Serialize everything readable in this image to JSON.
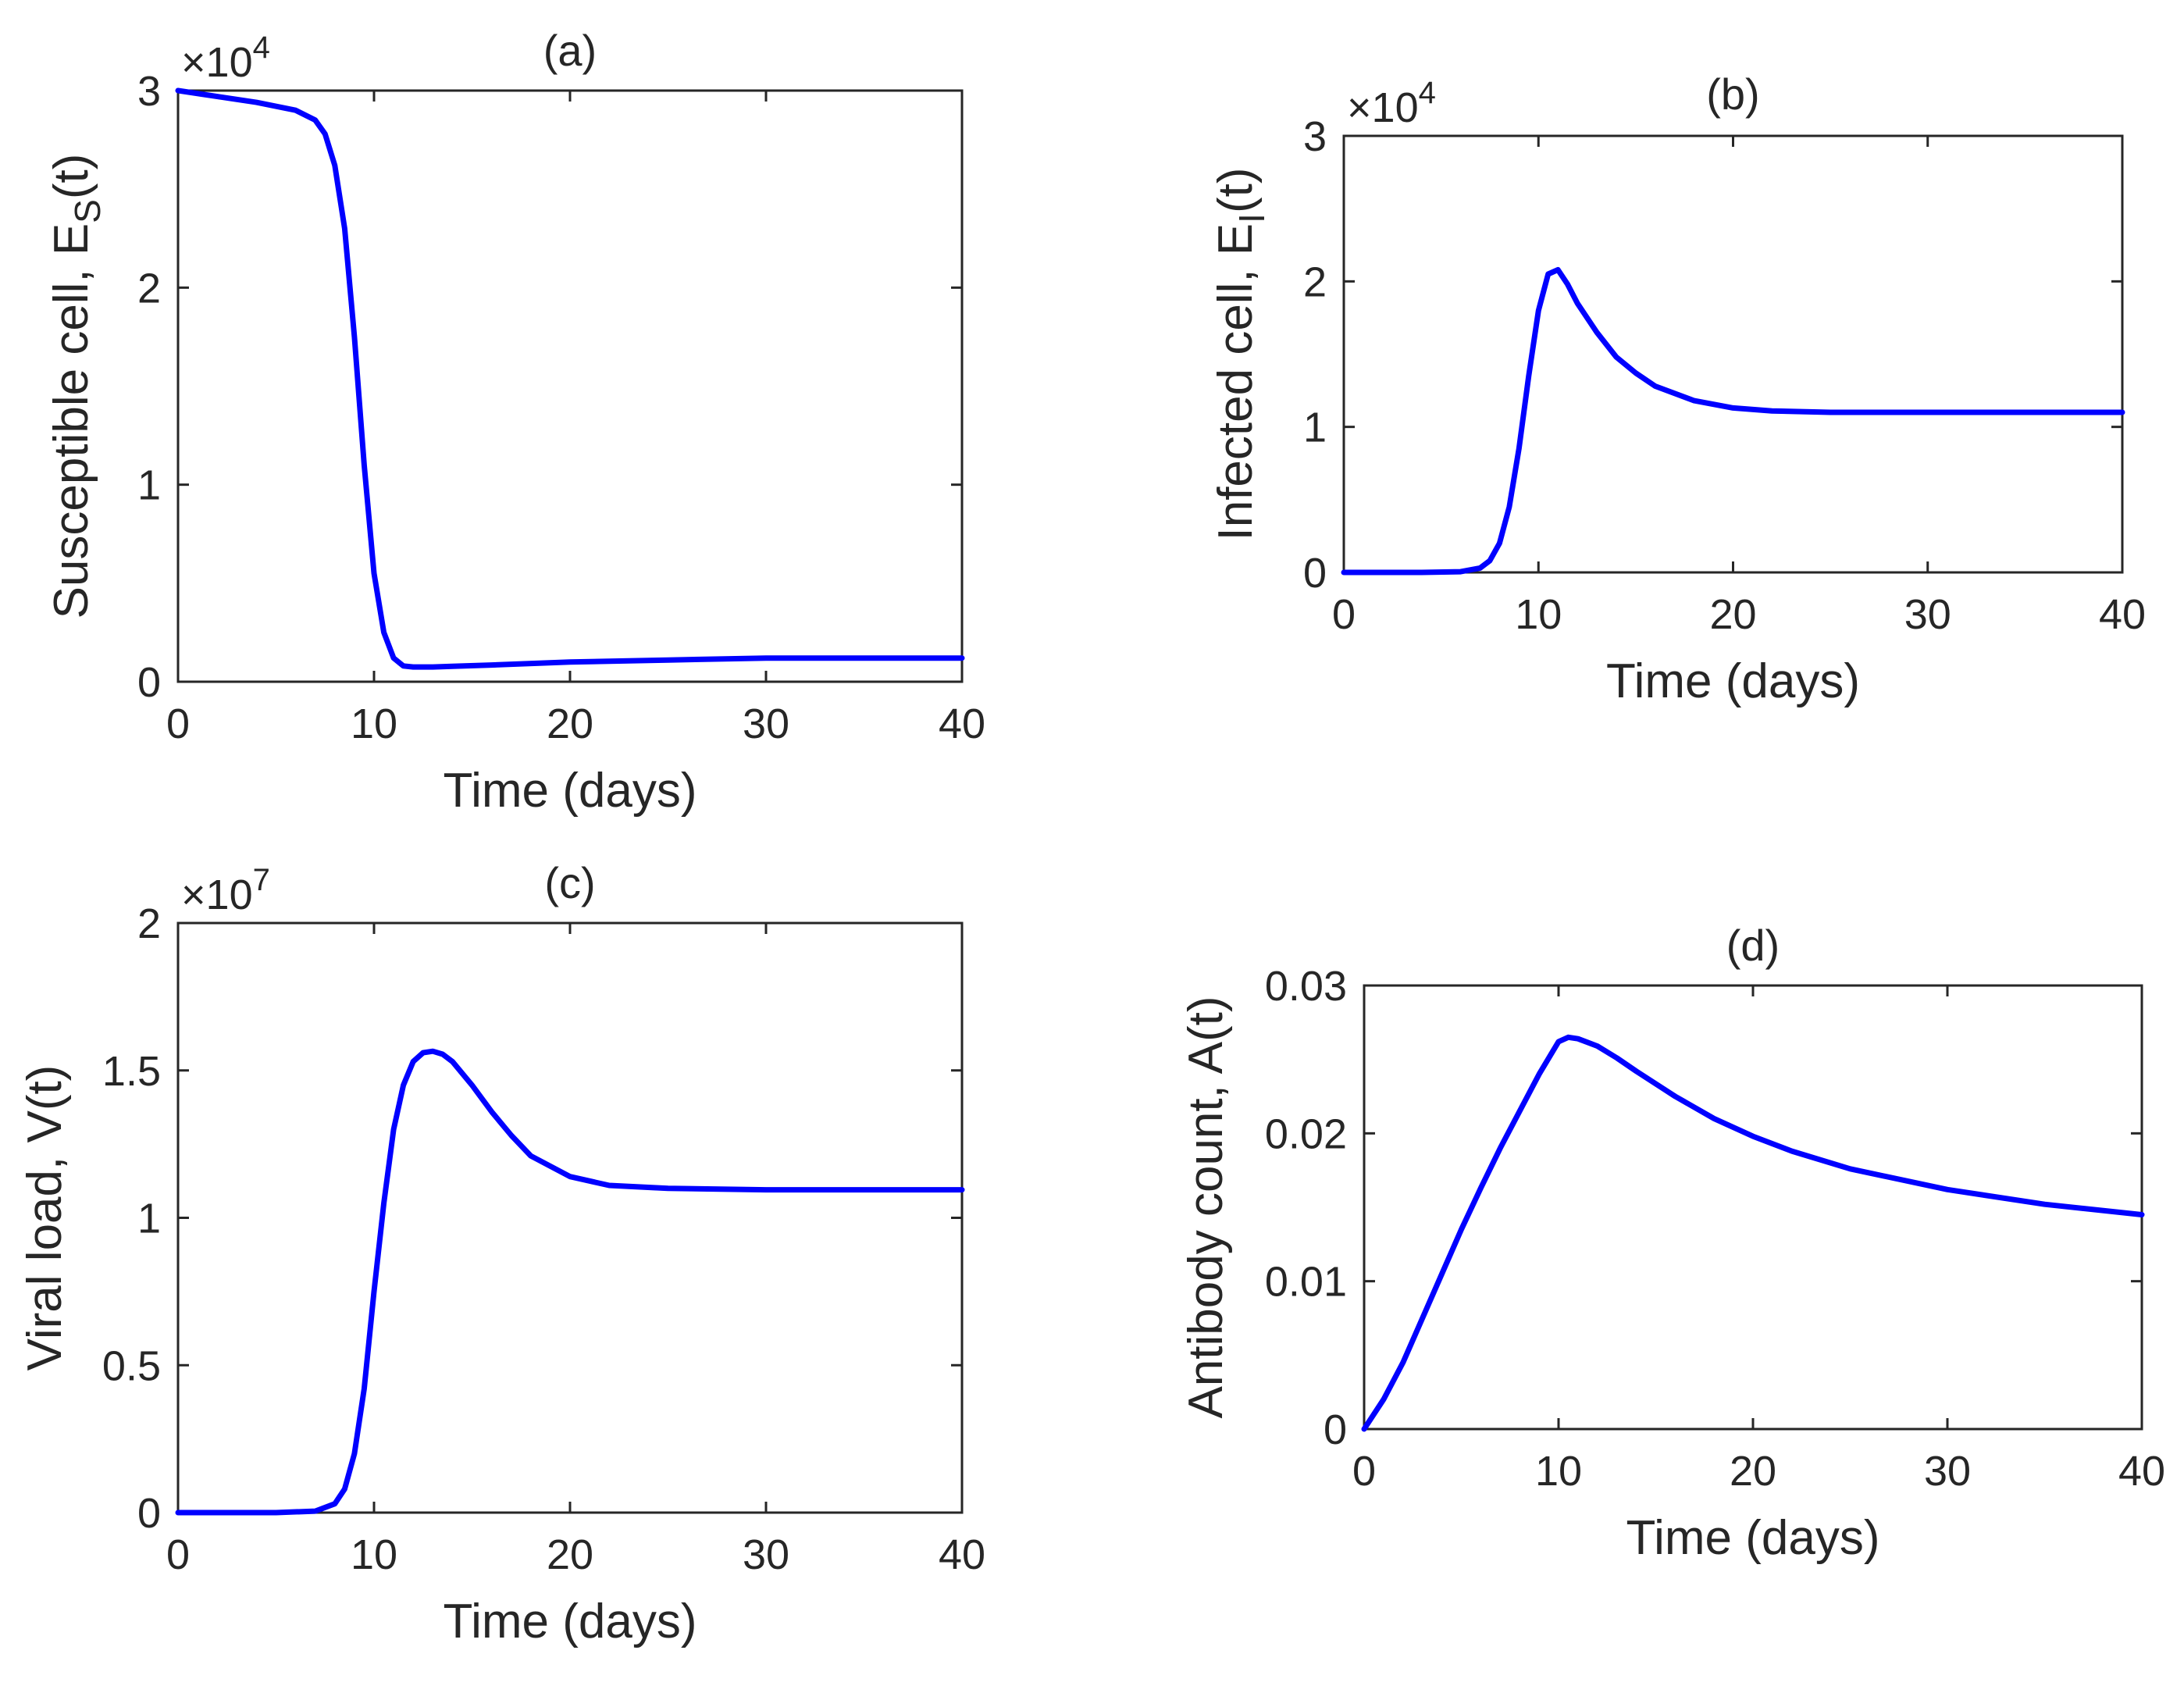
{
  "chart_data": [
    {
      "panel": "a",
      "type": "line",
      "title": "(a)",
      "xlabel": "Time (days)",
      "ylabel": "Susceptible cell, E",
      "ylabel_sub": "S",
      "ylabel_tail": "(t)",
      "xlim": [
        0,
        40
      ],
      "ylim": [
        0,
        3
      ],
      "xticks": [
        0,
        10,
        20,
        30,
        40
      ],
      "yticks": [
        0,
        1,
        2,
        3
      ],
      "xtick_labels": [
        "0",
        "10",
        "20",
        "30",
        "40"
      ],
      "ytick_labels": [
        "0",
        "1",
        "2",
        "3"
      ],
      "y_exponent": {
        "prefix": "×10",
        "power": "4"
      },
      "series": [
        {
          "name": "E_S(t)",
          "color": "#0000ff",
          "x": [
            0,
            2,
            4,
            6,
            7,
            7.5,
            8,
            8.5,
            9,
            9.5,
            10,
            10.5,
            11,
            11.5,
            12,
            13,
            14,
            16,
            20,
            25,
            30,
            35,
            40
          ],
          "y": [
            3.0,
            2.97,
            2.94,
            2.9,
            2.85,
            2.78,
            2.62,
            2.3,
            1.75,
            1.1,
            0.55,
            0.25,
            0.12,
            0.08,
            0.075,
            0.075,
            0.078,
            0.085,
            0.1,
            0.11,
            0.12,
            0.12,
            0.12
          ]
        }
      ]
    },
    {
      "panel": "b",
      "type": "line",
      "title": "(b)",
      "xlabel": "Time (days)",
      "ylabel": "Infected cell, E",
      "ylabel_sub": "I",
      "ylabel_tail": "(t)",
      "xlim": [
        0,
        40
      ],
      "ylim": [
        0,
        3
      ],
      "xticks": [
        0,
        10,
        20,
        30,
        40
      ],
      "yticks": [
        0,
        1,
        2,
        3
      ],
      "xtick_labels": [
        "0",
        "10",
        "20",
        "30",
        "40"
      ],
      "ytick_labels": [
        "0",
        "1",
        "2",
        "3"
      ],
      "y_exponent": {
        "prefix": "×10",
        "power": "4"
      },
      "series": [
        {
          "name": "E_I(t)",
          "color": "#0000ff",
          "x": [
            0,
            4,
            6,
            7,
            7.5,
            8,
            8.5,
            9,
            9.5,
            10,
            10.5,
            11,
            11.5,
            12,
            13,
            14,
            15,
            16,
            18,
            20,
            22,
            25,
            30,
            35,
            40
          ],
          "y": [
            0,
            0,
            0.005,
            0.03,
            0.08,
            0.2,
            0.45,
            0.85,
            1.35,
            1.8,
            2.05,
            2.08,
            1.98,
            1.85,
            1.65,
            1.48,
            1.37,
            1.28,
            1.18,
            1.13,
            1.11,
            1.1,
            1.1,
            1.1,
            1.1
          ]
        }
      ]
    },
    {
      "panel": "c",
      "type": "line",
      "title": "(c)",
      "xlabel": "Time (days)",
      "ylabel": "Viral load, V(t)",
      "ylabel_sub": "",
      "ylabel_tail": "",
      "xlim": [
        0,
        40
      ],
      "ylim": [
        0,
        2
      ],
      "xticks": [
        0,
        10,
        20,
        30,
        40
      ],
      "yticks": [
        0,
        0.5,
        1,
        1.5,
        2
      ],
      "xtick_labels": [
        "0",
        "10",
        "20",
        "30",
        "40"
      ],
      "ytick_labels": [
        "0",
        "0.5",
        "1",
        "1.5",
        "2"
      ],
      "y_exponent": {
        "prefix": "×10",
        "power": "7"
      },
      "series": [
        {
          "name": "V(t)",
          "color": "#0000ff",
          "x": [
            0,
            5,
            7,
            8,
            8.5,
            9,
            9.5,
            10,
            10.5,
            11,
            11.5,
            12,
            12.5,
            13,
            13.5,
            14,
            15,
            16,
            17,
            18,
            20,
            22,
            25,
            30,
            35,
            40
          ],
          "y": [
            0,
            0,
            0.005,
            0.03,
            0.08,
            0.2,
            0.42,
            0.75,
            1.05,
            1.3,
            1.45,
            1.53,
            1.56,
            1.565,
            1.555,
            1.53,
            1.45,
            1.36,
            1.28,
            1.21,
            1.14,
            1.11,
            1.1,
            1.095,
            1.095,
            1.095
          ]
        }
      ]
    },
    {
      "panel": "d",
      "type": "line",
      "title": "(d)",
      "xlabel": "Time (days)",
      "ylabel": "Antibody count, A(t)",
      "ylabel_sub": "",
      "ylabel_tail": "",
      "xlim": [
        0,
        40
      ],
      "ylim": [
        0,
        0.03
      ],
      "xticks": [
        0,
        10,
        20,
        30,
        40
      ],
      "yticks": [
        0,
        0.01,
        0.02,
        0.03
      ],
      "xtick_labels": [
        "0",
        "10",
        "20",
        "30",
        "40"
      ],
      "ytick_labels": [
        "0",
        "0.01",
        "0.02",
        "0.03"
      ],
      "y_exponent": null,
      "series": [
        {
          "name": "A(t)",
          "color": "#0000ff",
          "x": [
            0,
            1,
            2,
            3,
            4,
            5,
            6,
            7,
            8,
            9,
            10,
            10.5,
            11,
            12,
            13,
            14,
            16,
            18,
            20,
            22,
            25,
            30,
            35,
            40
          ],
          "y": [
            0,
            0.002,
            0.0045,
            0.0075,
            0.0105,
            0.0135,
            0.0163,
            0.019,
            0.0215,
            0.024,
            0.0262,
            0.0265,
            0.0264,
            0.0259,
            0.0251,
            0.0242,
            0.0225,
            0.021,
            0.0198,
            0.0188,
            0.0176,
            0.0162,
            0.0152,
            0.0145
          ]
        }
      ]
    }
  ]
}
